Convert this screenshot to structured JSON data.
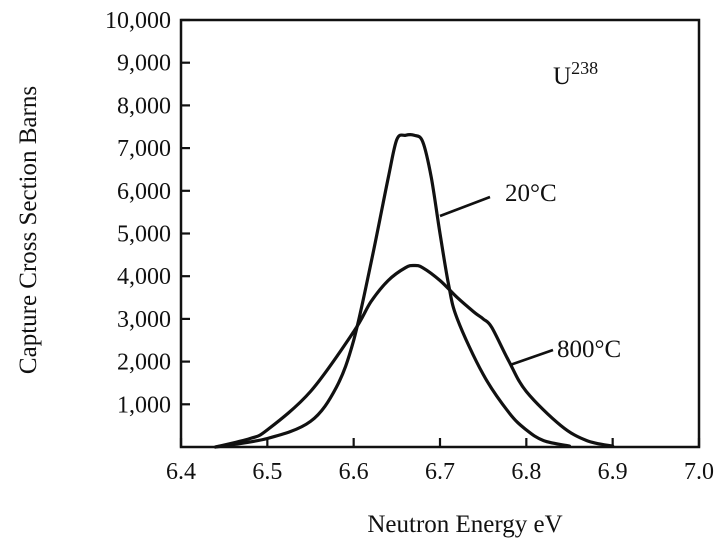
{
  "chart_data": {
    "type": "line",
    "title": "",
    "xlabel": "Neutron Energy eV",
    "ylabel": "Capture Cross Section Barns",
    "xlim": [
      6.4,
      7.0
    ],
    "ylim": [
      0,
      10000
    ],
    "grid": false,
    "x_ticks": [
      "6.4",
      "6.5",
      "6.6",
      "6.7",
      "6.8",
      "6.9",
      "7.0"
    ],
    "y_ticks": [
      "1,000",
      "2,000",
      "3,000",
      "4,000",
      "5,000",
      "6,000",
      "7,000",
      "8,000",
      "9,000",
      "10,000"
    ],
    "annotations": {
      "isotope_base": "U",
      "isotope_sup": "238"
    },
    "series": [
      {
        "name": "20°C",
        "x": [
          6.44,
          6.5,
          6.55,
          6.58,
          6.6,
          6.62,
          6.64,
          6.65,
          6.66,
          6.67,
          6.68,
          6.69,
          6.7,
          6.71,
          6.72,
          6.75,
          6.78,
          6.8,
          6.82,
          6.85
        ],
        "y": [
          0,
          200,
          600,
          1400,
          2500,
          4300,
          6300,
          7200,
          7300,
          7300,
          7150,
          6300,
          5000,
          3800,
          3000,
          1700,
          800,
          400,
          150,
          20
        ]
      },
      {
        "name": "800°C",
        "x": [
          6.44,
          6.48,
          6.5,
          6.55,
          6.6,
          6.62,
          6.64,
          6.66,
          6.67,
          6.68,
          6.7,
          6.72,
          6.74,
          6.75,
          6.76,
          6.78,
          6.8,
          6.84,
          6.87,
          6.9
        ],
        "y": [
          0,
          200,
          400,
          1300,
          2700,
          3400,
          3900,
          4200,
          4250,
          4200,
          3900,
          3500,
          3150,
          3000,
          2800,
          2000,
          1300,
          500,
          150,
          20
        ]
      }
    ]
  }
}
